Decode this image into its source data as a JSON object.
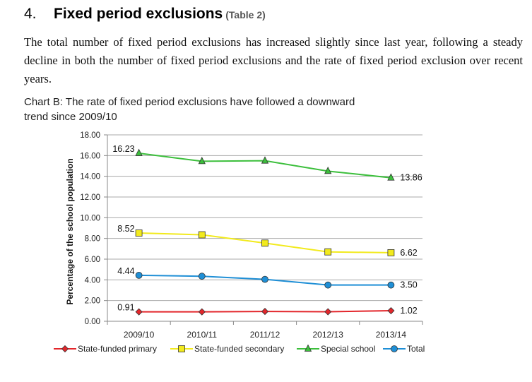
{
  "section": {
    "number": "4.",
    "title": "Fixed period exclusions",
    "table_ref": "(Table 2)"
  },
  "paragraph": "The total number of fixed period exclusions has increased slightly since last year, following a steady decline in both the number of fixed period exclusions and the rate of fixed period exclusion over recent years.",
  "chart_caption": "Chart B: The rate of fixed period exclusions have followed a downward trend since 2009/10",
  "chart_data": {
    "type": "line",
    "title": "",
    "xlabel": "",
    "ylabel": "Percentage of the school population",
    "ylim": [
      0,
      18
    ],
    "y_ticks": [
      "0.00",
      "2.00",
      "4.00",
      "6.00",
      "8.00",
      "10.00",
      "12.00",
      "14.00",
      "16.00",
      "18.00"
    ],
    "categories": [
      "2009/10",
      "2010/11",
      "2011/12",
      "2012/13",
      "2013/14"
    ],
    "grid": true,
    "legend_position": "bottom",
    "series": [
      {
        "name": "State-funded primary",
        "values": [
          0.91,
          0.91,
          0.95,
          0.92,
          1.02
        ],
        "color": "#e3262b",
        "marker": "diamond",
        "labels": [
          "0.91",
          "",
          "",
          "",
          "1.02"
        ]
      },
      {
        "name": "State-funded secondary",
        "values": [
          8.52,
          8.35,
          7.55,
          6.7,
          6.62
        ],
        "color": "#f2ea1d",
        "marker": "square",
        "labels": [
          "8.52",
          "",
          "",
          "",
          "6.62"
        ]
      },
      {
        "name": "Special school",
        "values": [
          16.23,
          15.45,
          15.5,
          14.5,
          13.86
        ],
        "color": "#3cbf3c",
        "marker": "triangle",
        "labels": [
          "16.23",
          "",
          "",
          "",
          "13.86"
        ]
      },
      {
        "name": "Total",
        "values": [
          4.44,
          4.35,
          4.05,
          3.5,
          3.5
        ],
        "color": "#1f8fd6",
        "marker": "circle",
        "labels": [
          "4.44",
          "",
          "",
          "",
          "3.50"
        ]
      }
    ]
  }
}
